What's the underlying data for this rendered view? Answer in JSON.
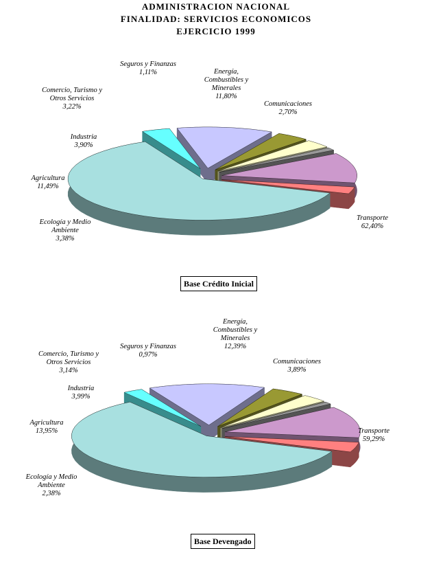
{
  "title": {
    "line1": "ADMINISTRACION NACIONAL",
    "line2": "FINALIDAD: SERVICIOS ECONOMICOS",
    "line3": "EJERCICIO 1999"
  },
  "chart_data": [
    {
      "type": "pie",
      "caption": "Base Crédito Inicial",
      "slices": [
        {
          "name": "Transporte",
          "label_lines": [
            "Transporte",
            "62,40%"
          ],
          "percent": 62.4,
          "color": "#a8e0e0"
        },
        {
          "name": "Ecología y Medio Ambiente",
          "label_lines": [
            "Ecología y Medio",
            "Ambiente",
            "3,38%"
          ],
          "percent": 3.38,
          "color": "#66ffff"
        },
        {
          "name": "Agricultura",
          "label_lines": [
            "Agricultura",
            "11,49%"
          ],
          "percent": 11.49,
          "color": "#c8c8ff"
        },
        {
          "name": "Industria",
          "label_lines": [
            "Industria",
            "3,90%"
          ],
          "percent": 3.9,
          "color": "#999933"
        },
        {
          "name": "Comercio, Turismo y Otros Servicios",
          "label_lines": [
            "Comercio, Turismo y",
            "Otros Servicios",
            "3,22%"
          ],
          "percent": 3.22,
          "color": "#ffffcc"
        },
        {
          "name": "Seguros y Finanzas",
          "label_lines": [
            "Seguros y Finanzas",
            "1,11%"
          ],
          "percent": 1.11,
          "color": "#999999"
        },
        {
          "name": "Energía, Combustibles y Minerales",
          "label_lines": [
            "Energía,",
            "Combustibles y",
            "Minerales",
            "11,80%"
          ],
          "percent": 11.8,
          "color": "#cc99cc"
        },
        {
          "name": "Comunicaciones",
          "label_lines": [
            "Comunicaciones",
            "2,70%"
          ],
          "percent": 2.7,
          "color": "#ff8080"
        }
      ]
    },
    {
      "type": "pie",
      "caption": "Base Devengado",
      "slices": [
        {
          "name": "Transporte",
          "label_lines": [
            "Transporte",
            "59,29%"
          ],
          "percent": 59.29,
          "color": "#a8e0e0"
        },
        {
          "name": "Ecología y Medio Ambiente",
          "label_lines": [
            "Ecología y Medio",
            "Ambiente",
            "2,38%"
          ],
          "percent": 2.38,
          "color": "#66ffff"
        },
        {
          "name": "Agricultura",
          "label_lines": [
            "Agricultura",
            "13,95%"
          ],
          "percent": 13.95,
          "color": "#c8c8ff"
        },
        {
          "name": "Industria",
          "label_lines": [
            "Industria",
            "3,99%"
          ],
          "percent": 3.99,
          "color": "#999933"
        },
        {
          "name": "Comercio, Turismo y Otros Servicios",
          "label_lines": [
            "Comercio, Turismo y",
            "Otros Servicios",
            "3,14%"
          ],
          "percent": 3.14,
          "color": "#ffffcc"
        },
        {
          "name": "Seguros y Finanzas",
          "label_lines": [
            "Seguros y Finanzas",
            "0,97%"
          ],
          "percent": 0.97,
          "color": "#999999"
        },
        {
          "name": "Energía, Combustibles y Minerales",
          "label_lines": [
            "Energía,",
            "Combustibles y",
            "Minerales",
            "12,39%"
          ],
          "percent": 12.39,
          "color": "#cc99cc"
        },
        {
          "name": "Comunicaciones",
          "label_lines": [
            "Comunicaciones",
            "3,89%"
          ],
          "percent": 3.89,
          "color": "#ff8080"
        }
      ]
    }
  ]
}
